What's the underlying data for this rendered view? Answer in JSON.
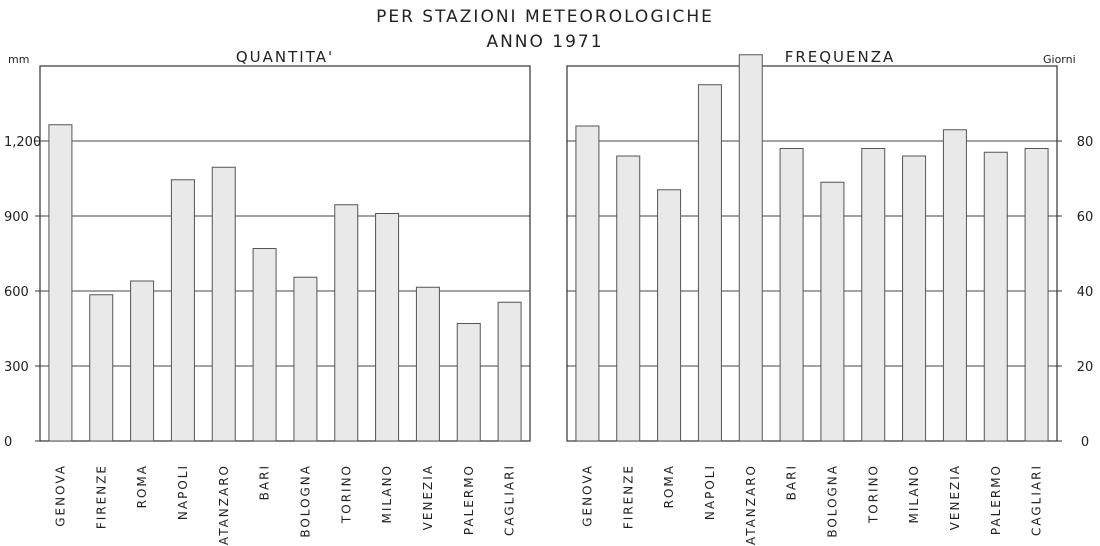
{
  "header": {
    "title_line1": "PER STAZIONI METEOROLOGICHE",
    "title_line2": "ANNO 1971"
  },
  "chart_data": [
    {
      "type": "bar",
      "title": "QUANTITA'",
      "ylabel": "mm",
      "ylim": [
        0,
        1500
      ],
      "yticks": [
        0,
        300,
        600,
        900,
        1200
      ],
      "ytick_labels": [
        "0",
        "300",
        "600",
        "900",
        "1,200"
      ],
      "categories": [
        "GENOVA",
        "FIRENZE",
        "ROMA",
        "NAPOLI",
        "CATANZARO",
        "BARI",
        "BOLOGNA",
        "TORINO",
        "MILANO",
        "VENEZIA",
        "PALERMO",
        "CAGLIARI"
      ],
      "values": [
        1265,
        585,
        640,
        1045,
        1095,
        770,
        655,
        945,
        910,
        615,
        470,
        555
      ],
      "grid": true
    },
    {
      "type": "bar",
      "title": "FREQUENZA",
      "ylabel": "Giorni",
      "ylim": [
        0,
        100
      ],
      "yticks": [
        0,
        20,
        40,
        60,
        80
      ],
      "ytick_labels": [
        "0",
        "20",
        "40",
        "60",
        "80"
      ],
      "categories": [
        "GENOVA",
        "FIRENZE",
        "ROMA",
        "NAPOLI",
        "CATANZARO",
        "BARI",
        "BOLOGNA",
        "TORINO",
        "MILANO",
        "VENEZIA",
        "PALERMO",
        "CAGLIARI"
      ],
      "values": [
        84,
        76,
        67,
        95,
        103,
        78,
        69,
        78,
        76,
        83,
        77,
        78
      ],
      "grid": true
    }
  ]
}
